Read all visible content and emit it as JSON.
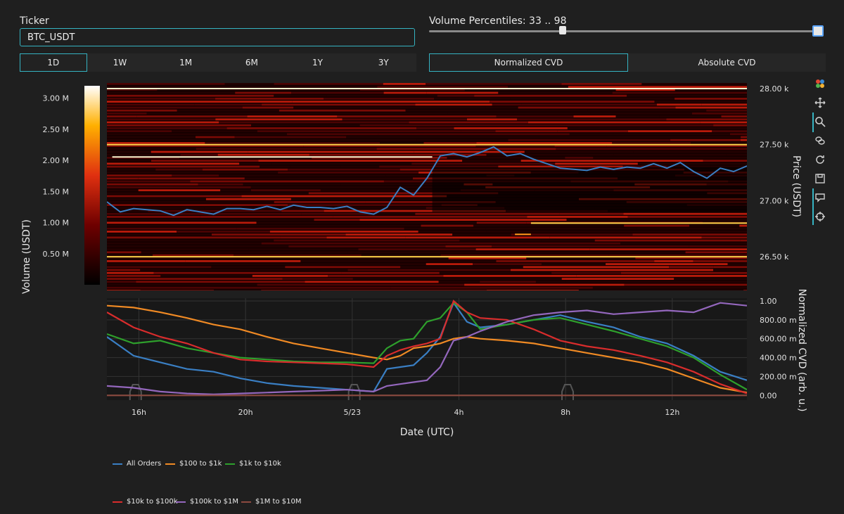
{
  "ticker": {
    "label": "Ticker",
    "value": "BTC_USDT"
  },
  "timeframes": [
    "1D",
    "1W",
    "1M",
    "6M",
    "1Y",
    "3Y"
  ],
  "timeframe_active": "1D",
  "volume_percentiles": {
    "label": "Volume Percentiles: 33 .. 98",
    "low": 33,
    "high": 98
  },
  "cvd_modes": [
    "Normalized CVD",
    "Absolute CVD"
  ],
  "cvd_active": "Normalized CVD",
  "modebar_icons": [
    "plotly-logo-icon",
    "pan-icon",
    "zoom-icon",
    "lasso-icon",
    "reset-icon",
    "download-icon",
    "hover-icon",
    "crosshair-icon"
  ],
  "colors": {
    "All Orders": "#3a7fc4",
    "$100 to $1k": "#f08a24",
    "$1k to $10k": "#2ea02c",
    "$10k to $100k": "#d92c2c",
    "$100k to $1M": "#9467bd",
    "$1M to $10M": "#8c4a40"
  },
  "chart_data": [
    {
      "type": "heatmap",
      "colorbar": {
        "title": "Volume (USDT)",
        "ticks": [
          "0.50 M",
          "1.00 M",
          "1.50 M",
          "2.00 M",
          "2.50 M",
          "3.00 M"
        ],
        "tick_values": [
          0.5,
          1.0,
          1.5,
          2.0,
          2.5,
          3.0
        ],
        "range": [
          0,
          3.2
        ]
      },
      "ylabel": "Price (USDT)",
      "yticks": [
        "26.50 k",
        "27.00 k",
        "27.50 k",
        "28.00 k"
      ],
      "ytick_values": [
        26500,
        27000,
        27500,
        28000
      ],
      "ylim": [
        26200,
        28050
      ],
      "price_series": {
        "name": "Price",
        "x_hours": [
          0,
          0.5,
          1,
          1.5,
          2,
          2.5,
          3,
          3.5,
          4,
          4.5,
          5,
          5.5,
          6,
          6.5,
          7,
          7.5,
          8,
          8.5,
          9,
          9.5,
          10,
          10.5,
          11,
          11.5,
          12,
          12.5,
          13,
          13.5,
          14,
          14.5,
          15,
          15.5,
          16,
          16.5,
          17,
          17.5,
          18,
          18.5,
          19,
          19.5,
          20,
          20.5,
          21,
          21.5,
          22,
          22.5,
          23,
          23.5,
          24
        ],
        "y": [
          26990,
          26900,
          26930,
          26920,
          26910,
          26870,
          26920,
          26900,
          26880,
          26930,
          26930,
          26920,
          26950,
          26920,
          26960,
          26940,
          26940,
          26930,
          26950,
          26900,
          26880,
          26940,
          27120,
          27050,
          27200,
          27400,
          27420,
          27390,
          27430,
          27480,
          27400,
          27420,
          27370,
          27330,
          27290,
          27280,
          27270,
          27300,
          27280,
          27300,
          27290,
          27330,
          27290,
          27340,
          27260,
          27200,
          27290,
          27260,
          27310
        ]
      },
      "bright_levels": [
        {
          "price": 28000,
          "intensity": 0.95,
          "from_hours": 0,
          "to_hours": 24
        },
        {
          "price": 27500,
          "intensity": 0.85,
          "from_hours": 0,
          "to_hours": 24
        },
        {
          "price": 27390,
          "intensity": 0.95,
          "from_hours": 0.2,
          "to_hours": 12.2
        },
        {
          "price": 26800,
          "intensity": 0.9,
          "from_hours": 15.9,
          "to_hours": 24
        },
        {
          "price": 26500,
          "intensity": 0.9,
          "from_hours": 0,
          "to_hours": 24
        },
        {
          "price": 26700,
          "intensity": 0.75,
          "from_hours": 15.3,
          "to_hours": 15.9
        }
      ]
    },
    {
      "type": "line",
      "ylabel": "Normalized CVD (arb. u.)",
      "yticks": [
        "0.00",
        "200.00 m",
        "400.00 m",
        "600.00 m",
        "800.00 m",
        "1.00"
      ],
      "ytick_values": [
        0,
        0.2,
        0.4,
        0.6,
        0.8,
        1.0
      ],
      "ylim": [
        -0.05,
        1.03
      ],
      "xlabel": "Date (UTC)",
      "xticks": [
        "16h",
        "20h",
        "5/23",
        "4h",
        "8h",
        "12h"
      ],
      "xtick_hours": [
        1.2,
        5.2,
        9.2,
        13.2,
        17.2,
        21.2
      ],
      "xlim_hours": [
        0,
        24
      ],
      "x_hours": [
        0,
        1,
        2,
        3,
        4,
        5,
        6,
        7,
        8,
        9,
        10,
        10.5,
        11,
        11.5,
        12,
        12.5,
        13,
        13.5,
        14,
        15,
        16,
        17,
        18,
        19,
        20,
        21,
        22,
        23,
        24
      ],
      "series": [
        {
          "name": "All Orders",
          "values": [
            0.62,
            0.42,
            0.35,
            0.28,
            0.25,
            0.18,
            0.13,
            0.1,
            0.08,
            0.06,
            0.04,
            0.28,
            0.3,
            0.32,
            0.45,
            0.62,
            0.98,
            0.78,
            0.72,
            0.75,
            0.8,
            0.85,
            0.78,
            0.72,
            0.62,
            0.55,
            0.42,
            0.25,
            0.16
          ]
        },
        {
          "name": "$100 to $1k",
          "values": [
            0.95,
            0.93,
            0.88,
            0.82,
            0.75,
            0.7,
            0.62,
            0.55,
            0.5,
            0.45,
            0.4,
            0.38,
            0.42,
            0.5,
            0.52,
            0.55,
            0.6,
            0.62,
            0.6,
            0.58,
            0.55,
            0.5,
            0.45,
            0.4,
            0.35,
            0.28,
            0.18,
            0.08,
            0.03
          ]
        },
        {
          "name": "$1k to $10k",
          "values": [
            0.65,
            0.55,
            0.58,
            0.5,
            0.45,
            0.4,
            0.38,
            0.36,
            0.35,
            0.35,
            0.34,
            0.5,
            0.58,
            0.6,
            0.78,
            0.82,
            0.98,
            0.88,
            0.7,
            0.75,
            0.8,
            0.82,
            0.75,
            0.68,
            0.6,
            0.52,
            0.4,
            0.22,
            0.06
          ]
        },
        {
          "name": "$10k to $100k",
          "values": [
            0.88,
            0.72,
            0.62,
            0.55,
            0.45,
            0.38,
            0.36,
            0.35,
            0.34,
            0.33,
            0.3,
            0.42,
            0.48,
            0.52,
            0.55,
            0.6,
            1.0,
            0.88,
            0.82,
            0.8,
            0.7,
            0.58,
            0.52,
            0.48,
            0.42,
            0.35,
            0.25,
            0.12,
            0.02
          ]
        },
        {
          "name": "$100k to $1M",
          "values": [
            0.1,
            0.08,
            0.04,
            0.02,
            0.01,
            0.02,
            0.03,
            0.04,
            0.05,
            0.06,
            0.04,
            0.1,
            0.12,
            0.14,
            0.16,
            0.3,
            0.58,
            0.62,
            0.68,
            0.78,
            0.85,
            0.88,
            0.9,
            0.86,
            0.88,
            0.9,
            0.88,
            0.98,
            0.95
          ]
        },
        {
          "name": "$1M to $10M",
          "values": [
            0,
            0,
            0,
            0,
            0,
            0,
            0,
            0,
            0,
            0,
            0,
            0,
            0,
            0,
            0,
            0,
            0,
            0,
            0,
            0,
            0,
            0,
            0,
            0,
            0,
            0,
            0,
            0,
            0
          ]
        }
      ]
    }
  ]
}
